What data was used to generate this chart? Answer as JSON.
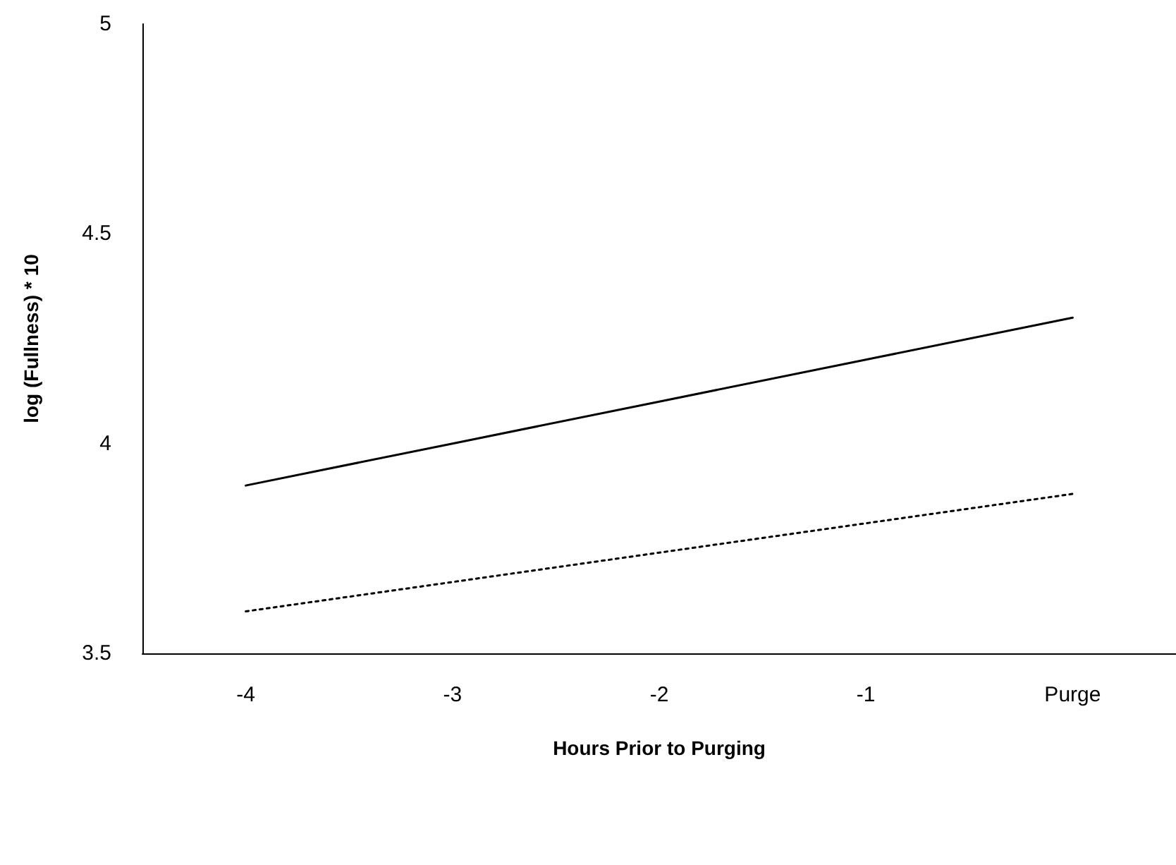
{
  "chart_data": {
    "type": "line",
    "xlabel": "Hours Prior to Purging",
    "ylabel": "log (Fullness) * 10",
    "categories": [
      "-4",
      "-3",
      "-2",
      "-1",
      "Purge"
    ],
    "series": [
      {
        "color": "#000000",
        "line_style": "solid",
        "values": [
          3.9,
          4.0,
          4.1,
          4.2,
          4.3
        ]
      },
      {
        "color": "#000000",
        "line_style": "dotted",
        "values": [
          3.6,
          3.67,
          3.74,
          3.81,
          3.88
        ]
      }
    ],
    "ylim": [
      3.5,
      5
    ],
    "yticks": [
      3.5,
      4,
      4.5,
      5
    ],
    "grid": false,
    "marker": "none"
  }
}
